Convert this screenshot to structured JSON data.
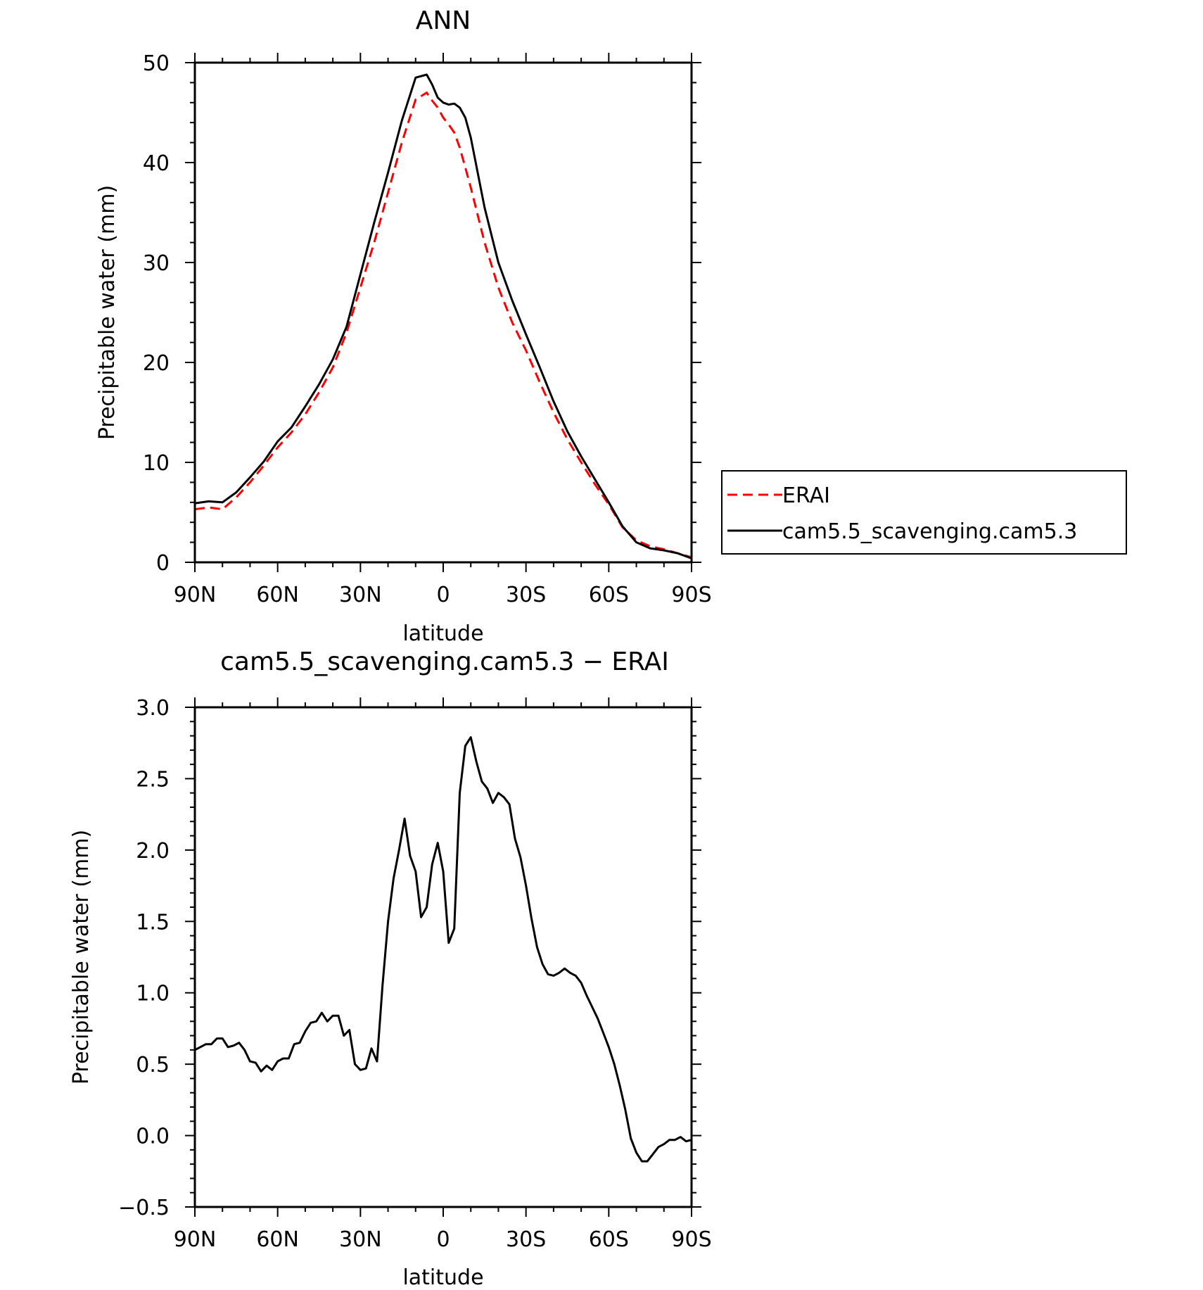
{
  "chart_data": [
    {
      "type": "line",
      "title": "ANN",
      "xlabel": "latitude",
      "ylabel": "Precipitable water (mm)",
      "x_tick_labels": [
        "90N",
        "60N",
        "30N",
        "0",
        "30S",
        "60S",
        "90S"
      ],
      "x_ticks": [
        90,
        60,
        30,
        0,
        -30,
        -60,
        -90
      ],
      "xlim": [
        90,
        -90
      ],
      "ylim": [
        0,
        50
      ],
      "y_ticks": [
        0,
        10,
        20,
        30,
        40,
        50
      ],
      "y_tick_labels": [
        "0",
        "10",
        "20",
        "30",
        "40",
        "50"
      ],
      "legend_placement": "right",
      "series": [
        {
          "name": "ERAI",
          "color": "#ff0000",
          "style": "dashed",
          "x": [
            90,
            85,
            80,
            75,
            70,
            65,
            60,
            55,
            50,
            45,
            40,
            35,
            30,
            25,
            20,
            15,
            10,
            6,
            4,
            2,
            0,
            -2,
            -4,
            -6,
            -8,
            -10,
            -15,
            -20,
            -25,
            -30,
            -35,
            -40,
            -45,
            -50,
            -55,
            -60,
            -65,
            -70,
            -75,
            -80,
            -85,
            -90
          ],
          "y": [
            5.3,
            5.5,
            5.3,
            6.5,
            8.0,
            9.7,
            11.5,
            13.0,
            14.8,
            17.0,
            19.5,
            23.0,
            27.5,
            32.0,
            37.0,
            42.0,
            46.3,
            47.0,
            46.2,
            45.5,
            44.5,
            43.8,
            43.0,
            41.5,
            39.5,
            37.5,
            32.0,
            27.5,
            24.0,
            21.2,
            18.0,
            15.0,
            12.3,
            10.0,
            7.8,
            5.8,
            3.5,
            2.2,
            1.6,
            1.3,
            0.9,
            0.5
          ]
        },
        {
          "name": "cam5.5_scavenging.cam5.3",
          "color": "#000000",
          "style": "solid",
          "x": [
            90,
            85,
            80,
            75,
            70,
            65,
            60,
            55,
            50,
            45,
            40,
            35,
            30,
            25,
            20,
            15,
            10,
            6,
            4,
            2,
            0,
            -2,
            -4,
            -6,
            -8,
            -10,
            -15,
            -20,
            -25,
            -30,
            -35,
            -40,
            -45,
            -50,
            -55,
            -60,
            -65,
            -70,
            -75,
            -80,
            -85,
            -90
          ],
          "y": [
            5.9,
            6.1,
            6.0,
            7.0,
            8.5,
            10.1,
            12.1,
            13.5,
            15.6,
            17.8,
            20.3,
            23.6,
            28.8,
            34.0,
            39.0,
            44.2,
            48.5,
            48.8,
            47.8,
            46.5,
            46.0,
            45.8,
            45.9,
            45.5,
            44.5,
            42.5,
            35.5,
            30.0,
            26.2,
            22.8,
            19.5,
            16.1,
            13.1,
            10.6,
            8.3,
            6.0,
            3.6,
            2.0,
            1.4,
            1.2,
            0.9,
            0.4
          ]
        }
      ]
    },
    {
      "type": "line",
      "title": "cam5.5_scavenging.cam5.3 − ERAI",
      "xlabel": "latitude",
      "ylabel": "Precipitable water (mm)",
      "x_tick_labels": [
        "90N",
        "60N",
        "30N",
        "0",
        "30S",
        "60S",
        "90S"
      ],
      "x_ticks": [
        90,
        60,
        30,
        0,
        -30,
        -60,
        -90
      ],
      "xlim": [
        90,
        -90
      ],
      "ylim": [
        -0.5,
        3.0
      ],
      "y_ticks": [
        -0.5,
        0.0,
        0.5,
        1.0,
        1.5,
        2.0,
        2.5,
        3.0
      ],
      "y_tick_labels": [
        "−0.5",
        "0.0",
        "0.5",
        "1.0",
        "1.5",
        "2.0",
        "2.5",
        "3.0"
      ],
      "series": [
        {
          "color": "#000000",
          "style": "solid",
          "x": [
            90,
            88,
            86,
            84,
            82,
            80,
            78,
            76,
            74,
            72,
            70,
            68,
            66,
            64,
            62,
            60,
            58,
            56,
            54,
            52,
            50,
            48,
            46,
            44,
            42,
            40,
            38,
            36,
            34,
            32,
            30,
            28,
            26,
            24,
            22,
            20,
            18,
            16,
            14,
            12,
            10,
            8,
            6,
            4,
            2,
            0,
            -2,
            -4,
            -6,
            -8,
            -10,
            -12,
            -14,
            -16,
            -18,
            -20,
            -22,
            -24,
            -26,
            -28,
            -30,
            -32,
            -34,
            -36,
            -38,
            -40,
            -42,
            -44,
            -46,
            -48,
            -50,
            -52,
            -54,
            -56,
            -58,
            -60,
            -62,
            -64,
            -66,
            -68,
            -70,
            -72,
            -74,
            -76,
            -78,
            -80,
            -82,
            -84,
            -86,
            -88,
            -90
          ],
          "y": [
            0.6,
            0.62,
            0.64,
            0.64,
            0.68,
            0.68,
            0.62,
            0.63,
            0.65,
            0.6,
            0.52,
            0.51,
            0.45,
            0.49,
            0.46,
            0.52,
            0.54,
            0.54,
            0.64,
            0.65,
            0.73,
            0.79,
            0.8,
            0.86,
            0.8,
            0.84,
            0.84,
            0.7,
            0.74,
            0.5,
            0.46,
            0.47,
            0.61,
            0.52,
            1.05,
            1.5,
            1.8,
            2.0,
            2.22,
            1.96,
            1.85,
            1.53,
            1.6,
            1.9,
            2.05,
            1.85,
            1.35,
            1.45,
            2.4,
            2.73,
            2.79,
            2.62,
            2.48,
            2.43,
            2.33,
            2.4,
            2.37,
            2.32,
            2.08,
            1.95,
            1.75,
            1.52,
            1.32,
            1.2,
            1.13,
            1.12,
            1.14,
            1.17,
            1.14,
            1.12,
            1.07,
            0.98,
            0.9,
            0.82,
            0.72,
            0.62,
            0.5,
            0.35,
            0.18,
            -0.02,
            -0.12,
            -0.18,
            -0.18,
            -0.13,
            -0.08,
            -0.06,
            -0.03,
            -0.03,
            -0.01,
            -0.04,
            -0.03
          ]
        }
      ]
    }
  ]
}
